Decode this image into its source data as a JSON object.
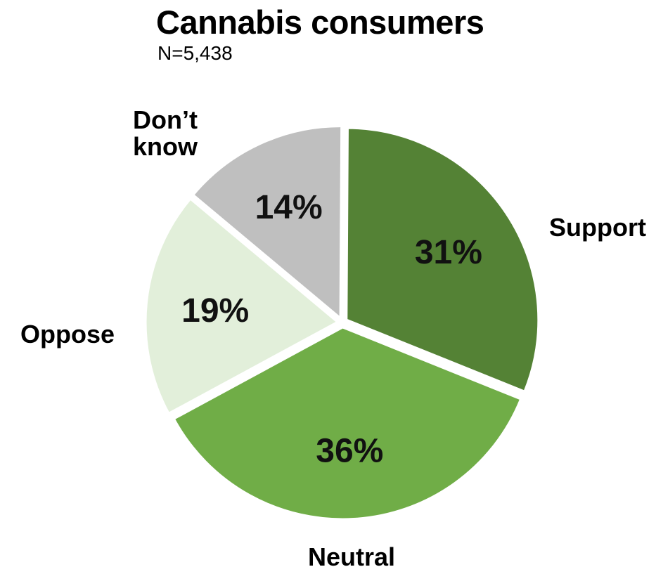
{
  "title": "Cannabis consumers",
  "subtitle": "N=5,438",
  "chart_data": {
    "type": "pie",
    "title": "Cannabis consumers",
    "subtitle": "N=5,438",
    "slices": [
      {
        "label": "Support",
        "value": 31,
        "display": "31%",
        "color": "#548235"
      },
      {
        "label": "Neutral",
        "value": 36,
        "display": "36%",
        "color": "#70ad47"
      },
      {
        "label": "Oppose",
        "value": 19,
        "display": "19%",
        "color": "#e2efda"
      },
      {
        "label": "Don’t\nknow",
        "value": 14,
        "display": "14%",
        "color": "#bfbfbf"
      }
    ]
  }
}
